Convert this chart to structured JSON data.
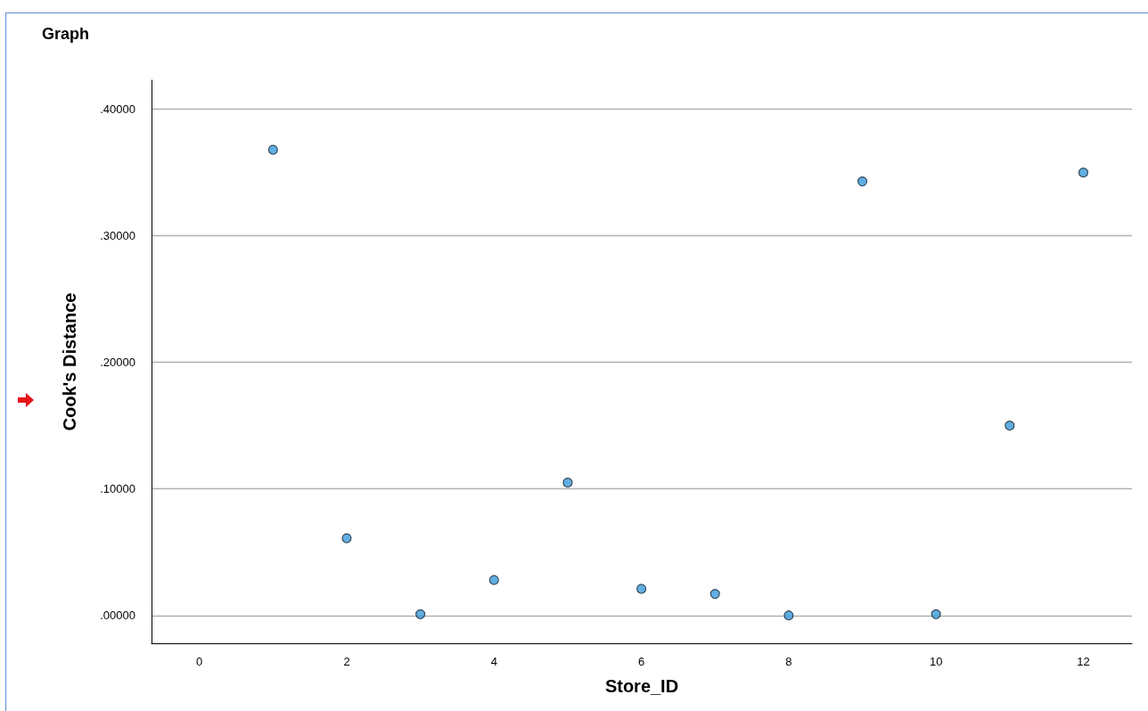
{
  "chart_data": {
    "type": "scatter",
    "title": "Graph",
    "xlabel": "Store_ID",
    "ylabel": "Cook's Distance",
    "x": [
      1,
      2,
      3,
      4,
      5,
      6,
      7,
      8,
      9,
      10,
      11,
      12
    ],
    "values": [
      0.368,
      0.061,
      0.001,
      0.028,
      0.105,
      0.021,
      0.017,
      0.0,
      0.343,
      0.001,
      0.15,
      0.35
    ],
    "color": "#3a9ad9",
    "xlim": [
      -0.65,
      12.66
    ],
    "xticks": [
      0,
      2,
      4,
      6,
      8,
      10,
      12
    ],
    "ylim": [
      -0.022,
      0.423
    ],
    "yticks": [
      {
        "value": 0,
        "label": ".00000"
      },
      {
        "value": 0.1,
        "label": ".10000"
      },
      {
        "value": 0.2,
        "label": ".20000"
      },
      {
        "value": 0.3,
        "label": ".30000"
      },
      {
        "value": 0.4,
        "label": ".40000"
      }
    ],
    "grid": "y",
    "marker": "circle"
  }
}
